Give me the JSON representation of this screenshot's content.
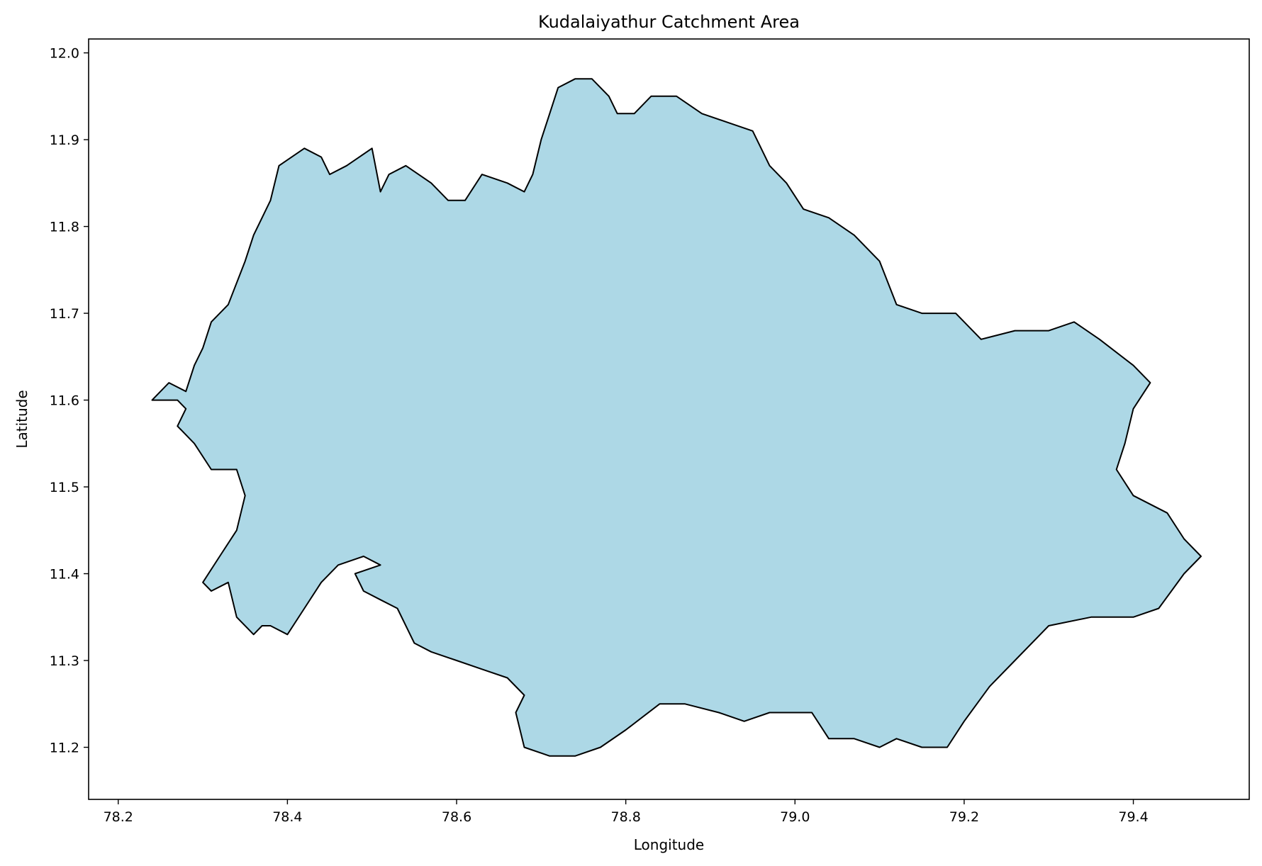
{
  "chart_data": {
    "type": "area",
    "title": "Kudalaiyathur Catchment Area",
    "xlabel": "Longitude",
    "ylabel": "Latitude",
    "xlim": [
      78.165,
      79.537
    ],
    "ylim": [
      11.14,
      12.016
    ],
    "x_ticks": [
      "78.2",
      "78.4",
      "78.6",
      "78.8",
      "79.0",
      "79.2",
      "79.4"
    ],
    "y_ticks": [
      "11.2",
      "11.3",
      "11.4",
      "11.5",
      "11.6",
      "11.7",
      "11.8",
      "11.9",
      "12.0"
    ],
    "grid": false,
    "fill_color": "#add8e6",
    "edge_color": "#000000",
    "series": [
      {
        "x": [
          78.24,
          78.26,
          78.28,
          78.29,
          78.3,
          78.31,
          78.33,
          78.35,
          78.36,
          78.37,
          78.38,
          78.39,
          78.42,
          78.44,
          78.45,
          78.47,
          78.5,
          78.51,
          78.52,
          78.54,
          78.57,
          78.59,
          78.61,
          78.63,
          78.66,
          78.68,
          78.69,
          78.7,
          78.71,
          78.72,
          78.74,
          78.76,
          78.78,
          78.79,
          78.81,
          78.83,
          78.86,
          78.89,
          78.92,
          78.95,
          78.97,
          78.99,
          79.01,
          79.04,
          79.07,
          79.1,
          79.12,
          79.15,
          79.19,
          79.22,
          79.26,
          79.3,
          79.33,
          79.36,
          79.4,
          79.42,
          79.4,
          79.39,
          79.38,
          79.4,
          79.44,
          79.46,
          79.48,
          79.46,
          79.43,
          79.4,
          79.35,
          79.3,
          79.26,
          79.23,
          79.2,
          79.18,
          79.15,
          79.12,
          79.1,
          79.07,
          79.04,
          79.02,
          79.0,
          78.97,
          78.94,
          78.91,
          78.87,
          78.84,
          78.8,
          78.77,
          78.74,
          78.71,
          78.68,
          78.67,
          78.68,
          78.66,
          78.63,
          78.6,
          78.57,
          78.55,
          78.53,
          78.51,
          78.49,
          78.48,
          78.51,
          78.49,
          78.46,
          78.44,
          78.42,
          78.4,
          78.38,
          78.37,
          78.36,
          78.34,
          78.33,
          78.31,
          78.3,
          78.32,
          78.34,
          78.35,
          78.34,
          78.31,
          78.29,
          78.27,
          78.28,
          78.27,
          78.25
        ],
        "y": [
          11.6,
          11.62,
          11.61,
          11.64,
          11.66,
          11.69,
          11.71,
          11.76,
          11.79,
          11.81,
          11.83,
          11.87,
          11.89,
          11.88,
          11.86,
          11.87,
          11.89,
          11.84,
          11.86,
          11.87,
          11.85,
          11.83,
          11.83,
          11.86,
          11.85,
          11.84,
          11.86,
          11.9,
          11.93,
          11.96,
          11.97,
          11.97,
          11.95,
          11.93,
          11.93,
          11.95,
          11.95,
          11.93,
          11.92,
          11.91,
          11.87,
          11.85,
          11.82,
          11.81,
          11.79,
          11.76,
          11.71,
          11.7,
          11.7,
          11.67,
          11.68,
          11.68,
          11.69,
          11.67,
          11.64,
          11.62,
          11.59,
          11.55,
          11.52,
          11.49,
          11.47,
          11.44,
          11.42,
          11.4,
          11.36,
          11.35,
          11.35,
          11.34,
          11.3,
          11.27,
          11.23,
          11.2,
          11.2,
          11.21,
          11.2,
          11.21,
          11.21,
          11.24,
          11.24,
          11.24,
          11.23,
          11.24,
          11.25,
          11.25,
          11.22,
          11.2,
          11.19,
          11.19,
          11.2,
          11.24,
          11.26,
          11.28,
          11.29,
          11.3,
          11.31,
          11.32,
          11.36,
          11.37,
          11.38,
          11.4,
          11.41,
          11.42,
          11.41,
          11.39,
          11.36,
          11.33,
          11.34,
          11.34,
          11.33,
          11.35,
          11.39,
          11.38,
          11.39,
          11.42,
          11.45,
          11.49,
          11.52,
          11.52,
          11.55,
          11.57,
          11.59,
          11.6,
          11.6
        ]
      }
    ]
  }
}
